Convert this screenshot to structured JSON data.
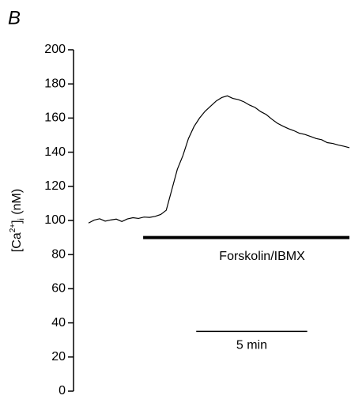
{
  "chart_data": {
    "type": "line",
    "panel_label": "B",
    "y_label": {
      "open": "[Ca",
      "sup": "2+",
      "close": "]",
      "sub": "i",
      "unit": " (nM)"
    },
    "ylim": [
      0,
      200
    ],
    "yticks": [
      0,
      20,
      40,
      60,
      80,
      100,
      120,
      140,
      160,
      180,
      200
    ],
    "xlim": [
      0,
      11.75
    ],
    "color": "#000000",
    "x": [
      0,
      0.25,
      0.5,
      0.75,
      1,
      1.25,
      1.5,
      1.75,
      2,
      2.25,
      2.5,
      2.75,
      3,
      3.25,
      3.5,
      3.75,
      4,
      4.25,
      4.5,
      4.75,
      5,
      5.25,
      5.5,
      5.75,
      6,
      6.25,
      6.5,
      6.75,
      7,
      7.25,
      7.5,
      7.75,
      8,
      8.25,
      8.5,
      8.75,
      9,
      9.25,
      9.5,
      9.75,
      10,
      10.25,
      10.5,
      10.75,
      11,
      11.25,
      11.5,
      11.75
    ],
    "values": [
      98.5,
      100.2,
      101.0,
      99.6,
      100.3,
      100.8,
      99.4,
      100.9,
      101.6,
      101.2,
      102.0,
      101.8,
      102.4,
      103.5,
      106,
      118,
      130,
      138,
      148,
      155,
      160,
      164,
      167,
      170,
      172,
      173,
      171.5,
      170.8,
      169.5,
      167.6,
      166.2,
      163.8,
      162.1,
      159.4,
      157.0,
      155.3,
      153.8,
      152.6,
      151.1,
      150.4,
      149.2,
      148.0,
      147.3,
      145.6,
      145.1,
      144.2,
      143.5,
      142.6
    ],
    "treatment_bar": {
      "label": "Forskolin/IBMX",
      "start": 2.46,
      "end": 11.75,
      "y": 90
    },
    "scale_bar": {
      "label": "5 min",
      "start": 4.85,
      "length": 5,
      "y": 35
    }
  }
}
